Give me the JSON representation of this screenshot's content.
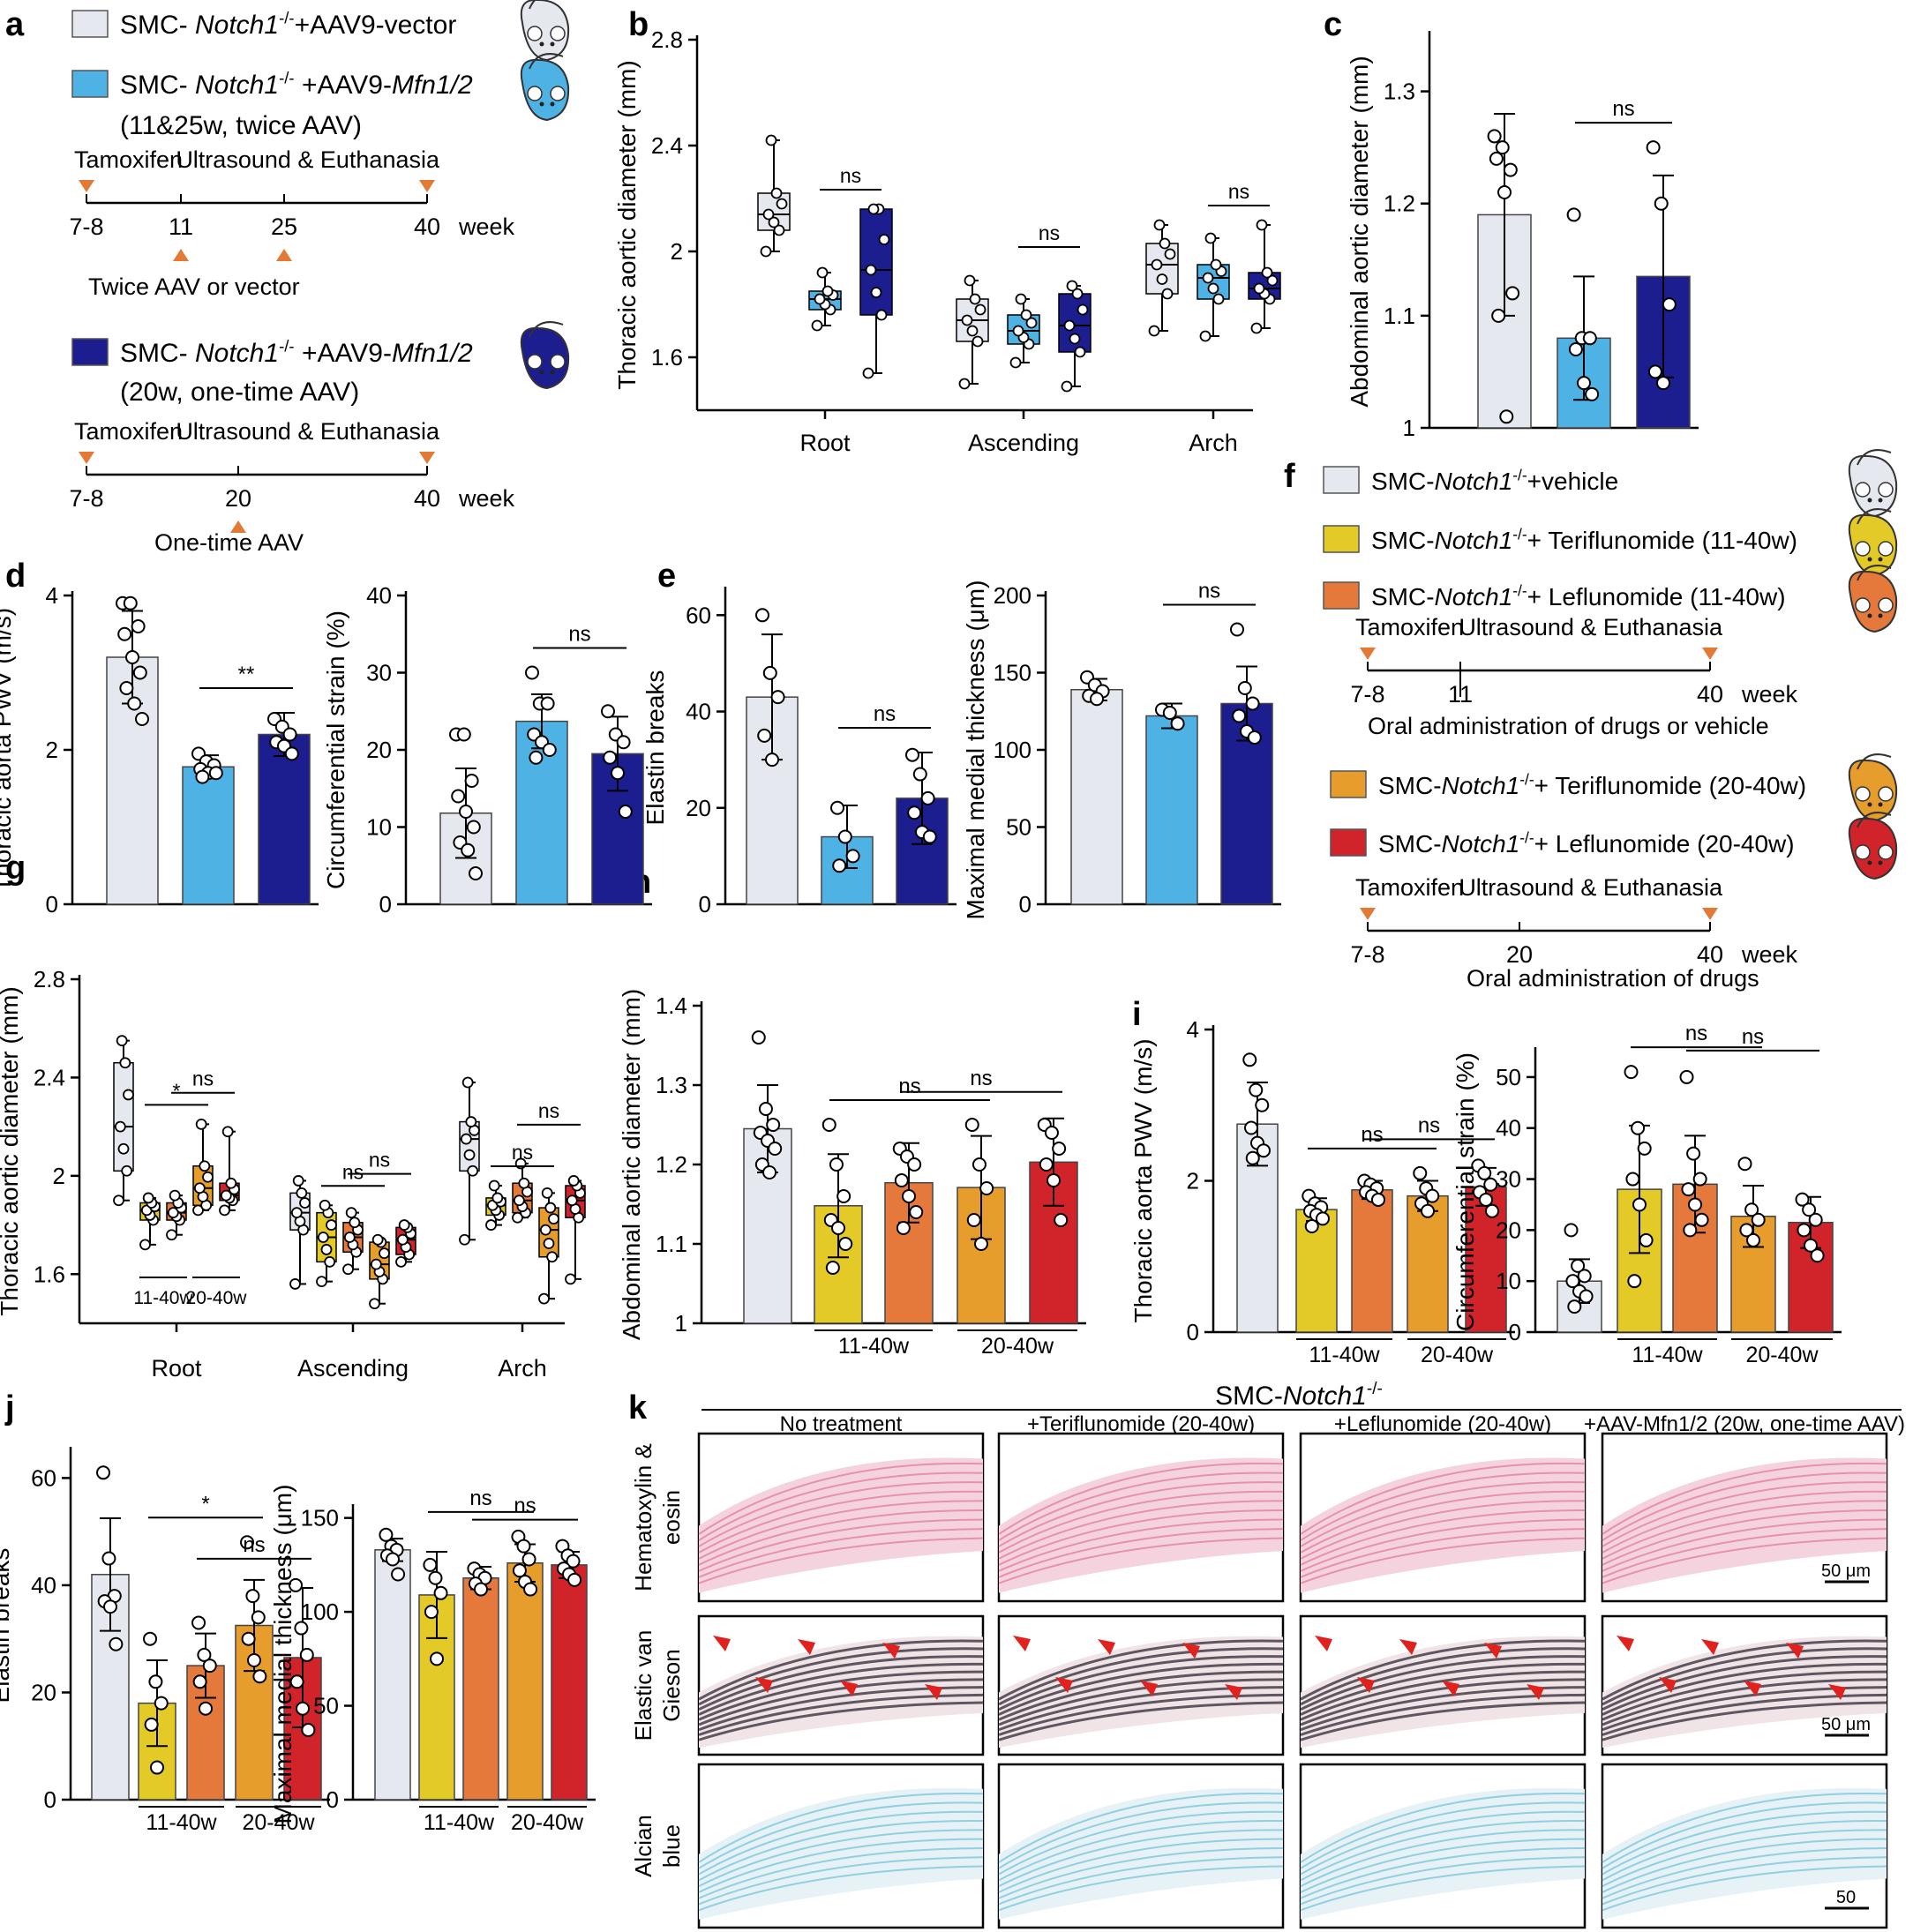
{
  "panel_letters": [
    "a",
    "b",
    "c",
    "d",
    "e",
    "f",
    "g",
    "h",
    "i",
    "j",
    "k"
  ],
  "colors": {
    "vector": "#e5e8ef",
    "mfn_twice": "#4eb3e4",
    "mfn_once": "#1c1d8f",
    "vehicle": "#e5e8ef",
    "teri_11": "#e3ca26",
    "lef_11": "#e5793b",
    "teri_20": "#e79d2c",
    "lef_20": "#d0232a",
    "arrow": "#e27a36"
  },
  "panel_a": {
    "legend1": [
      {
        "pre": "SMC- ",
        "gene": "Notch1",
        "sup": "-/-",
        "post": "+AAV9-vector",
        "color": "#e5e8ef"
      },
      {
        "pre": "SMC- ",
        "gene": "Notch1",
        "sup": "-/-",
        "post": " +AAV9-",
        "gene2": "Mfn1/2",
        "color": "#4eb3e4"
      }
    ],
    "legend1_note": "(11&25w, twice AAV)",
    "timeline1": {
      "start_label": "Tamoxifen",
      "end_label": "Ultrasound & Euthanasia",
      "ticks": [
        "7-8",
        "11",
        "25",
        "40"
      ],
      "unit": "week",
      "bottom_label": "Twice AAV or vector"
    },
    "legend2": {
      "pre": "SMC- ",
      "gene": "Notch1",
      "sup": "-/-",
      "post": " +AAV9-",
      "gene2": "Mfn1/2",
      "color": "#1c1d8f"
    },
    "legend2_note": "(20w, one-time AAV)",
    "timeline2": {
      "start_label": "Tamoxifen",
      "end_label": "Ultrasound & Euthanasia",
      "ticks": [
        "7-8",
        "20",
        "40"
      ],
      "unit": "week",
      "bottom_label": "One-time AAV"
    }
  },
  "panel_f": {
    "legend1": [
      {
        "pre": "SMC-",
        "gene": "Notch1",
        "sup": "-/-",
        "post": "+vehicle",
        "color": "#e5e8ef"
      },
      {
        "pre": "SMC-",
        "gene": "Notch1",
        "sup": "-/-",
        "post": "+ Teriflunomide (11-40w)",
        "color": "#e3ca26"
      },
      {
        "pre": "SMC-",
        "gene": "Notch1",
        "sup": "-/-",
        "post": "+ Leflunomide (11-40w)",
        "color": "#e5793b"
      }
    ],
    "timeline1": {
      "start_label": "Tamoxifen",
      "end_label": "Ultrasound & Euthanasia",
      "ticks": [
        "7-8",
        "11",
        "40"
      ],
      "unit": "week",
      "bottom_label": "Oral administration of drugs or vehicle"
    },
    "legend2": [
      {
        "pre": "SMC-",
        "gene": "Notch1",
        "sup": "-/-",
        "post": "+ Teriflunomide (20-40w)",
        "color": "#e79d2c"
      },
      {
        "pre": "SMC-",
        "gene": "Notch1",
        "sup": "-/-",
        "post": "+ Leflunomide (20-40w)",
        "color": "#d0232a"
      }
    ],
    "timeline2": {
      "start_label": "Tamoxifen",
      "end_label": "Ultrasound & Euthanasia",
      "ticks": [
        "7-8",
        "20",
        "40"
      ],
      "unit": "week",
      "bottom_label": "Oral administration of drugs"
    }
  },
  "panel_k": {
    "header_pre": "SMC-",
    "header_gene": "Notch1",
    "header_sup": "-/-",
    "columns": [
      "No treatment",
      "+Teriflunomide (20-40w)",
      "+Leflunomide (20-40w)",
      "+AAV-Mfn1/2 (20w, one-time AAV)"
    ],
    "rows": [
      "Hematoxylin & eosin",
      "Elastic van Gieson",
      "Alcian blue"
    ],
    "scale_labels": [
      "50 μm",
      "50 μm",
      "50"
    ]
  },
  "chart_data": [
    {
      "id": "b",
      "type": "box",
      "ylabel": "Thoracic aortic diameter (mm)",
      "ylim": [
        1.4,
        2.8
      ],
      "yticks": [
        1.6,
        2.0,
        2.4,
        2.8
      ],
      "categories": [
        "Root",
        "Ascending",
        "Arch"
      ],
      "series_colors": [
        "#e5e8ef",
        "#4eb3e4",
        "#1c1d8f"
      ],
      "boxes": [
        [
          [
            2.0,
            2.08,
            2.14,
            2.22,
            2.42
          ],
          [
            1.72,
            1.78,
            1.82,
            1.85,
            1.92
          ],
          [
            1.54,
            1.76,
            1.93,
            2.16,
            2.16
          ]
        ],
        [
          [
            1.5,
            1.66,
            1.74,
            1.82,
            1.89
          ],
          [
            1.58,
            1.65,
            1.7,
            1.76,
            1.82
          ],
          [
            1.49,
            1.62,
            1.72,
            1.84,
            1.87
          ]
        ],
        [
          [
            1.7,
            1.84,
            1.95,
            2.03,
            2.1
          ],
          [
            1.68,
            1.82,
            1.9,
            1.95,
            2.05
          ],
          [
            1.71,
            1.82,
            1.86,
            1.92,
            2.1
          ]
        ]
      ],
      "sig": [
        {
          "group": 0,
          "from": 1,
          "to": 2,
          "label": "ns"
        },
        {
          "group": 1,
          "from": 1,
          "to": 2,
          "label": "ns"
        },
        {
          "group": 2,
          "from": 1,
          "to": 2,
          "label": "ns"
        }
      ]
    },
    {
      "id": "c",
      "type": "bar",
      "ylabel": "Abdominal aortic diameter (mm)",
      "ylim": [
        1.0,
        1.35
      ],
      "yticks": [
        1.0,
        1.1,
        1.2,
        1.3
      ],
      "colors": [
        "#e5e8ef",
        "#4eb3e4",
        "#1c1d8f"
      ],
      "values": [
        1.19,
        1.08,
        1.135
      ],
      "errors": [
        0.09,
        0.055,
        0.09
      ],
      "points": [
        [
          1.26,
          1.25,
          1.23,
          1.24,
          1.21,
          1.12,
          1.1,
          1.01
        ],
        [
          1.19,
          1.08,
          1.08,
          1.07,
          1.04,
          1.03
        ],
        [
          1.25,
          1.2,
          1.11,
          1.05,
          1.04
        ]
      ],
      "sig": [
        {
          "from": 1,
          "to": 2,
          "label": "ns"
        }
      ]
    },
    {
      "id": "d1",
      "type": "bar",
      "ylabel": "Thoracic aorta PWV (m/s)",
      "ylim": [
        0,
        4
      ],
      "yticks": [
        0,
        2,
        4
      ],
      "colors": [
        "#e5e8ef",
        "#4eb3e4",
        "#1c1d8f"
      ],
      "values": [
        3.2,
        1.78,
        2.2
      ],
      "errors": [
        0.6,
        0.15,
        0.28
      ],
      "points": [
        [
          3.9,
          3.9,
          3.6,
          3.5,
          3.2,
          3.0,
          2.8,
          2.6,
          2.4
        ],
        [
          1.95,
          1.85,
          1.8,
          1.75,
          1.7,
          1.7,
          1.65
        ],
        [
          2.4,
          2.3,
          2.2,
          2.1,
          2.05,
          1.95
        ]
      ],
      "sig": [
        {
          "from": 1,
          "to": 2,
          "label": "**"
        }
      ]
    },
    {
      "id": "d2",
      "type": "bar",
      "ylabel": "Circumferential strain (%)",
      "ylim": [
        0,
        40
      ],
      "yticks": [
        0,
        10,
        20,
        30,
        40
      ],
      "colors": [
        "#e5e8ef",
        "#4eb3e4",
        "#1c1d8f"
      ],
      "values": [
        11.8,
        23.7,
        19.5
      ],
      "errors": [
        5.8,
        3.5,
        4.8
      ],
      "points": [
        [
          22,
          22,
          16,
          14,
          12,
          10,
          8,
          7,
          4
        ],
        [
          30,
          26,
          26,
          22,
          21,
          20,
          19
        ],
        [
          25,
          22,
          21,
          19,
          17,
          12
        ]
      ],
      "sig": [
        {
          "from": 1,
          "to": 2,
          "label": "ns"
        }
      ]
    },
    {
      "id": "e1",
      "type": "bar",
      "ylabel": "Elastin breaks",
      "ylim": [
        0,
        65
      ],
      "yticks": [
        0,
        20,
        40,
        60
      ],
      "colors": [
        "#e5e8ef",
        "#4eb3e4",
        "#1c1d8f"
      ],
      "values": [
        43,
        14,
        22
      ],
      "errors": [
        13,
        6.5,
        9.5
      ],
      "points": [
        [
          60,
          48,
          43,
          35,
          30
        ],
        [
          20,
          14,
          10,
          8
        ],
        [
          31,
          27,
          22,
          19,
          15,
          14
        ]
      ],
      "sig": [
        {
          "from": 1,
          "to": 2,
          "label": "ns"
        }
      ]
    },
    {
      "id": "e2",
      "type": "bar",
      "ylabel": "Maximal medial thickness (μm)",
      "ylim": [
        0,
        200
      ],
      "yticks": [
        0,
        50,
        100,
        150,
        200
      ],
      "colors": [
        "#e5e8ef",
        "#4eb3e4",
        "#1c1d8f"
      ],
      "values": [
        139,
        122,
        130
      ],
      "errors": [
        7,
        8,
        24
      ],
      "points": [
        [
          147,
          142,
          138,
          135,
          133
        ],
        [
          126,
          124,
          117
        ],
        [
          178,
          140,
          130,
          122,
          112,
          108
        ]
      ],
      "sig": [
        {
          "from": 1,
          "to": 2,
          "label": "ns"
        }
      ]
    },
    {
      "id": "g",
      "type": "box",
      "ylabel": "Thoracic aortic diameter (mm)",
      "ylim": [
        1.4,
        2.8
      ],
      "yticks": [
        1.6,
        2.0,
        2.4,
        2.8
      ],
      "categories": [
        "Root",
        "Ascending",
        "Arch"
      ],
      "series_colors": [
        "#e5e8ef",
        "#e3ca26",
        "#e5793b",
        "#e79d2c",
        "#d0232a"
      ],
      "boxes": [
        [
          [
            1.9,
            2.02,
            2.2,
            2.46,
            2.55
          ],
          [
            1.72,
            1.82,
            1.86,
            1.89,
            1.91
          ],
          [
            1.76,
            1.82,
            1.85,
            1.89,
            1.92
          ],
          [
            1.86,
            1.88,
            1.95,
            2.04,
            2.21
          ],
          [
            1.86,
            1.9,
            1.92,
            1.97,
            2.18
          ]
        ],
        [
          [
            1.56,
            1.78,
            1.85,
            1.93,
            1.98
          ],
          [
            1.57,
            1.65,
            1.75,
            1.85,
            1.88
          ],
          [
            1.62,
            1.69,
            1.75,
            1.81,
            1.85
          ],
          [
            1.48,
            1.58,
            1.64,
            1.73,
            1.74
          ],
          [
            1.65,
            1.68,
            1.74,
            1.79,
            1.8
          ]
        ],
        [
          [
            1.74,
            2.02,
            2.15,
            2.22,
            2.38
          ],
          [
            1.8,
            1.84,
            1.88,
            1.91,
            1.96
          ],
          [
            1.83,
            1.85,
            1.9,
            1.97,
            2.05
          ],
          [
            1.5,
            1.67,
            1.78,
            1.87,
            1.93
          ],
          [
            1.58,
            1.83,
            1.9,
            1.96,
            1.98
          ]
        ]
      ],
      "sig": [
        {
          "group": 0,
          "from": 1,
          "to": 3,
          "label": "*"
        },
        {
          "group": 0,
          "from": 2,
          "to": 4,
          "label": "ns"
        },
        {
          "group": 1,
          "from": 1,
          "to": 3,
          "label": "ns"
        },
        {
          "group": 1,
          "from": 2,
          "to": 4,
          "label": "ns"
        },
        {
          "group": 2,
          "from": 1,
          "to": 3,
          "label": "ns"
        },
        {
          "group": 2,
          "from": 2,
          "to": 4,
          "label": "ns"
        }
      ],
      "group_labels": [
        "11-40w",
        "20-40w"
      ]
    },
    {
      "id": "h",
      "type": "bar",
      "ylabel": "Abdominal aortic diameter (mm)",
      "ylim": [
        1.0,
        1.4
      ],
      "yticks": [
        1.0,
        1.1,
        1.2,
        1.3,
        1.4
      ],
      "colors": [
        "#e5e8ef",
        "#e3ca26",
        "#e5793b",
        "#e79d2c",
        "#d0232a"
      ],
      "values": [
        1.245,
        1.148,
        1.177,
        1.171,
        1.203
      ],
      "errors": [
        0.055,
        0.065,
        0.05,
        0.065,
        0.055
      ],
      "points": [
        [
          1.36,
          1.27,
          1.25,
          1.24,
          1.23,
          1.22,
          1.2,
          1.19
        ],
        [
          1.25,
          1.2,
          1.16,
          1.13,
          1.12,
          1.1,
          1.07
        ],
        [
          1.22,
          1.21,
          1.2,
          1.18,
          1.16,
          1.14,
          1.12
        ],
        [
          1.25,
          1.2,
          1.17,
          1.13,
          1.1
        ],
        [
          1.25,
          1.24,
          1.22,
          1.2,
          1.18,
          1.13
        ]
      ],
      "sig": [
        {
          "from": 1,
          "to": 3,
          "label": "ns"
        },
        {
          "from": 2,
          "to": 4,
          "label": "ns"
        }
      ],
      "group_labels": [
        "11-40w",
        "20-40w"
      ]
    },
    {
      "id": "i1",
      "type": "bar",
      "ylabel": "Thoracic aorta PWV (m/s)",
      "ylim": [
        0,
        4
      ],
      "yticks": [
        0,
        2,
        4
      ],
      "colors": [
        "#e5e8ef",
        "#e3ca26",
        "#e5793b",
        "#e79d2c",
        "#d0232a"
      ],
      "values": [
        2.75,
        1.62,
        1.88,
        1.8,
        1.92
      ],
      "errors": [
        0.55,
        0.15,
        0.12,
        0.2,
        0.25
      ],
      "points": [
        [
          3.6,
          3.2,
          3.0,
          2.7,
          2.5,
          2.4,
          2.3
        ],
        [
          1.8,
          1.7,
          1.65,
          1.6,
          1.55,
          1.5,
          1.4
        ],
        [
          2.0,
          1.95,
          1.9,
          1.85,
          1.8,
          1.75
        ],
        [
          2.1,
          1.9,
          1.8,
          1.7,
          1.6
        ],
        [
          2.2,
          2.1,
          1.95,
          1.85,
          1.75,
          1.6
        ]
      ],
      "sig": [
        {
          "from": 1,
          "to": 3,
          "label": "ns"
        },
        {
          "from": 2,
          "to": 4,
          "label": "ns"
        }
      ],
      "group_labels": [
        "11-40w",
        "20-40w"
      ]
    },
    {
      "id": "i2",
      "type": "bar",
      "ylabel": "Circumferential strain (%)",
      "ylim": [
        0,
        55
      ],
      "yticks": [
        0,
        10,
        20,
        30,
        40,
        50
      ],
      "colors": [
        "#e5e8ef",
        "#e3ca26",
        "#e5793b",
        "#e79d2c",
        "#d0232a"
      ],
      "values": [
        10,
        28,
        29,
        22.7,
        21.5
      ],
      "errors": [
        4.3,
        12.5,
        9.5,
        6,
        5
      ],
      "points": [
        [
          20,
          13,
          11,
          10,
          8,
          7,
          5
        ],
        [
          51,
          40,
          36,
          30,
          25,
          18,
          10
        ],
        [
          50,
          35,
          30,
          28,
          25,
          22,
          20
        ],
        [
          33,
          24,
          22,
          20,
          18
        ],
        [
          26,
          24,
          22,
          20,
          17,
          15
        ]
      ],
      "sig": [
        {
          "from": 1,
          "to": 3,
          "label": "ns"
        },
        {
          "from": 2,
          "to": 4,
          "label": "ns"
        }
      ],
      "group_labels": [
        "11-40w",
        "20-40w"
      ]
    },
    {
      "id": "j1",
      "type": "bar",
      "ylabel": "Elastin breaks",
      "ylim": [
        0,
        65
      ],
      "yticks": [
        0,
        20,
        40,
        60
      ],
      "colors": [
        "#e5e8ef",
        "#e3ca26",
        "#e5793b",
        "#e79d2c",
        "#d0232a"
      ],
      "values": [
        42,
        18,
        25,
        32.5,
        26.5
      ],
      "errors": [
        10.5,
        8,
        6,
        8.5,
        13
      ],
      "points": [
        [
          61,
          45,
          38,
          37,
          36,
          29
        ],
        [
          30,
          22,
          18,
          14,
          6
        ],
        [
          33,
          27,
          25,
          22,
          17
        ],
        [
          48,
          38,
          34,
          30,
          26,
          23
        ],
        [
          40,
          32,
          27,
          22,
          17,
          13
        ]
      ],
      "sig": [
        {
          "from": 1,
          "to": 3,
          "label": "*"
        },
        {
          "from": 2,
          "to": 4,
          "label": "ns"
        }
      ],
      "group_labels": [
        "11-40w",
        "20-40w"
      ]
    },
    {
      "id": "j2",
      "type": "bar",
      "ylabel": "Maximal medial thickness (μm)",
      "ylim": [
        0,
        155
      ],
      "yticks": [
        0,
        50,
        100,
        150
      ],
      "colors": [
        "#e5e8ef",
        "#e3ca26",
        "#e5793b",
        "#e79d2c",
        "#d0232a"
      ],
      "values": [
        133,
        109,
        118,
        126,
        125
      ],
      "errors": [
        6,
        23,
        6,
        10,
        7
      ],
      "points": [
        [
          141,
          135,
          133,
          130,
          128,
          120
        ],
        [
          125,
          118,
          110,
          100,
          75
        ],
        [
          123,
          120,
          118,
          115,
          112
        ],
        [
          140,
          135,
          128,
          122,
          116,
          112
        ],
        [
          135,
          130,
          127,
          123,
          120,
          117
        ]
      ],
      "sig": [
        {
          "from": 1,
          "to": 3,
          "label": "ns"
        },
        {
          "from": 2,
          "to": 4,
          "label": "ns"
        }
      ],
      "group_labels": [
        "11-40w",
        "20-40w"
      ]
    }
  ]
}
